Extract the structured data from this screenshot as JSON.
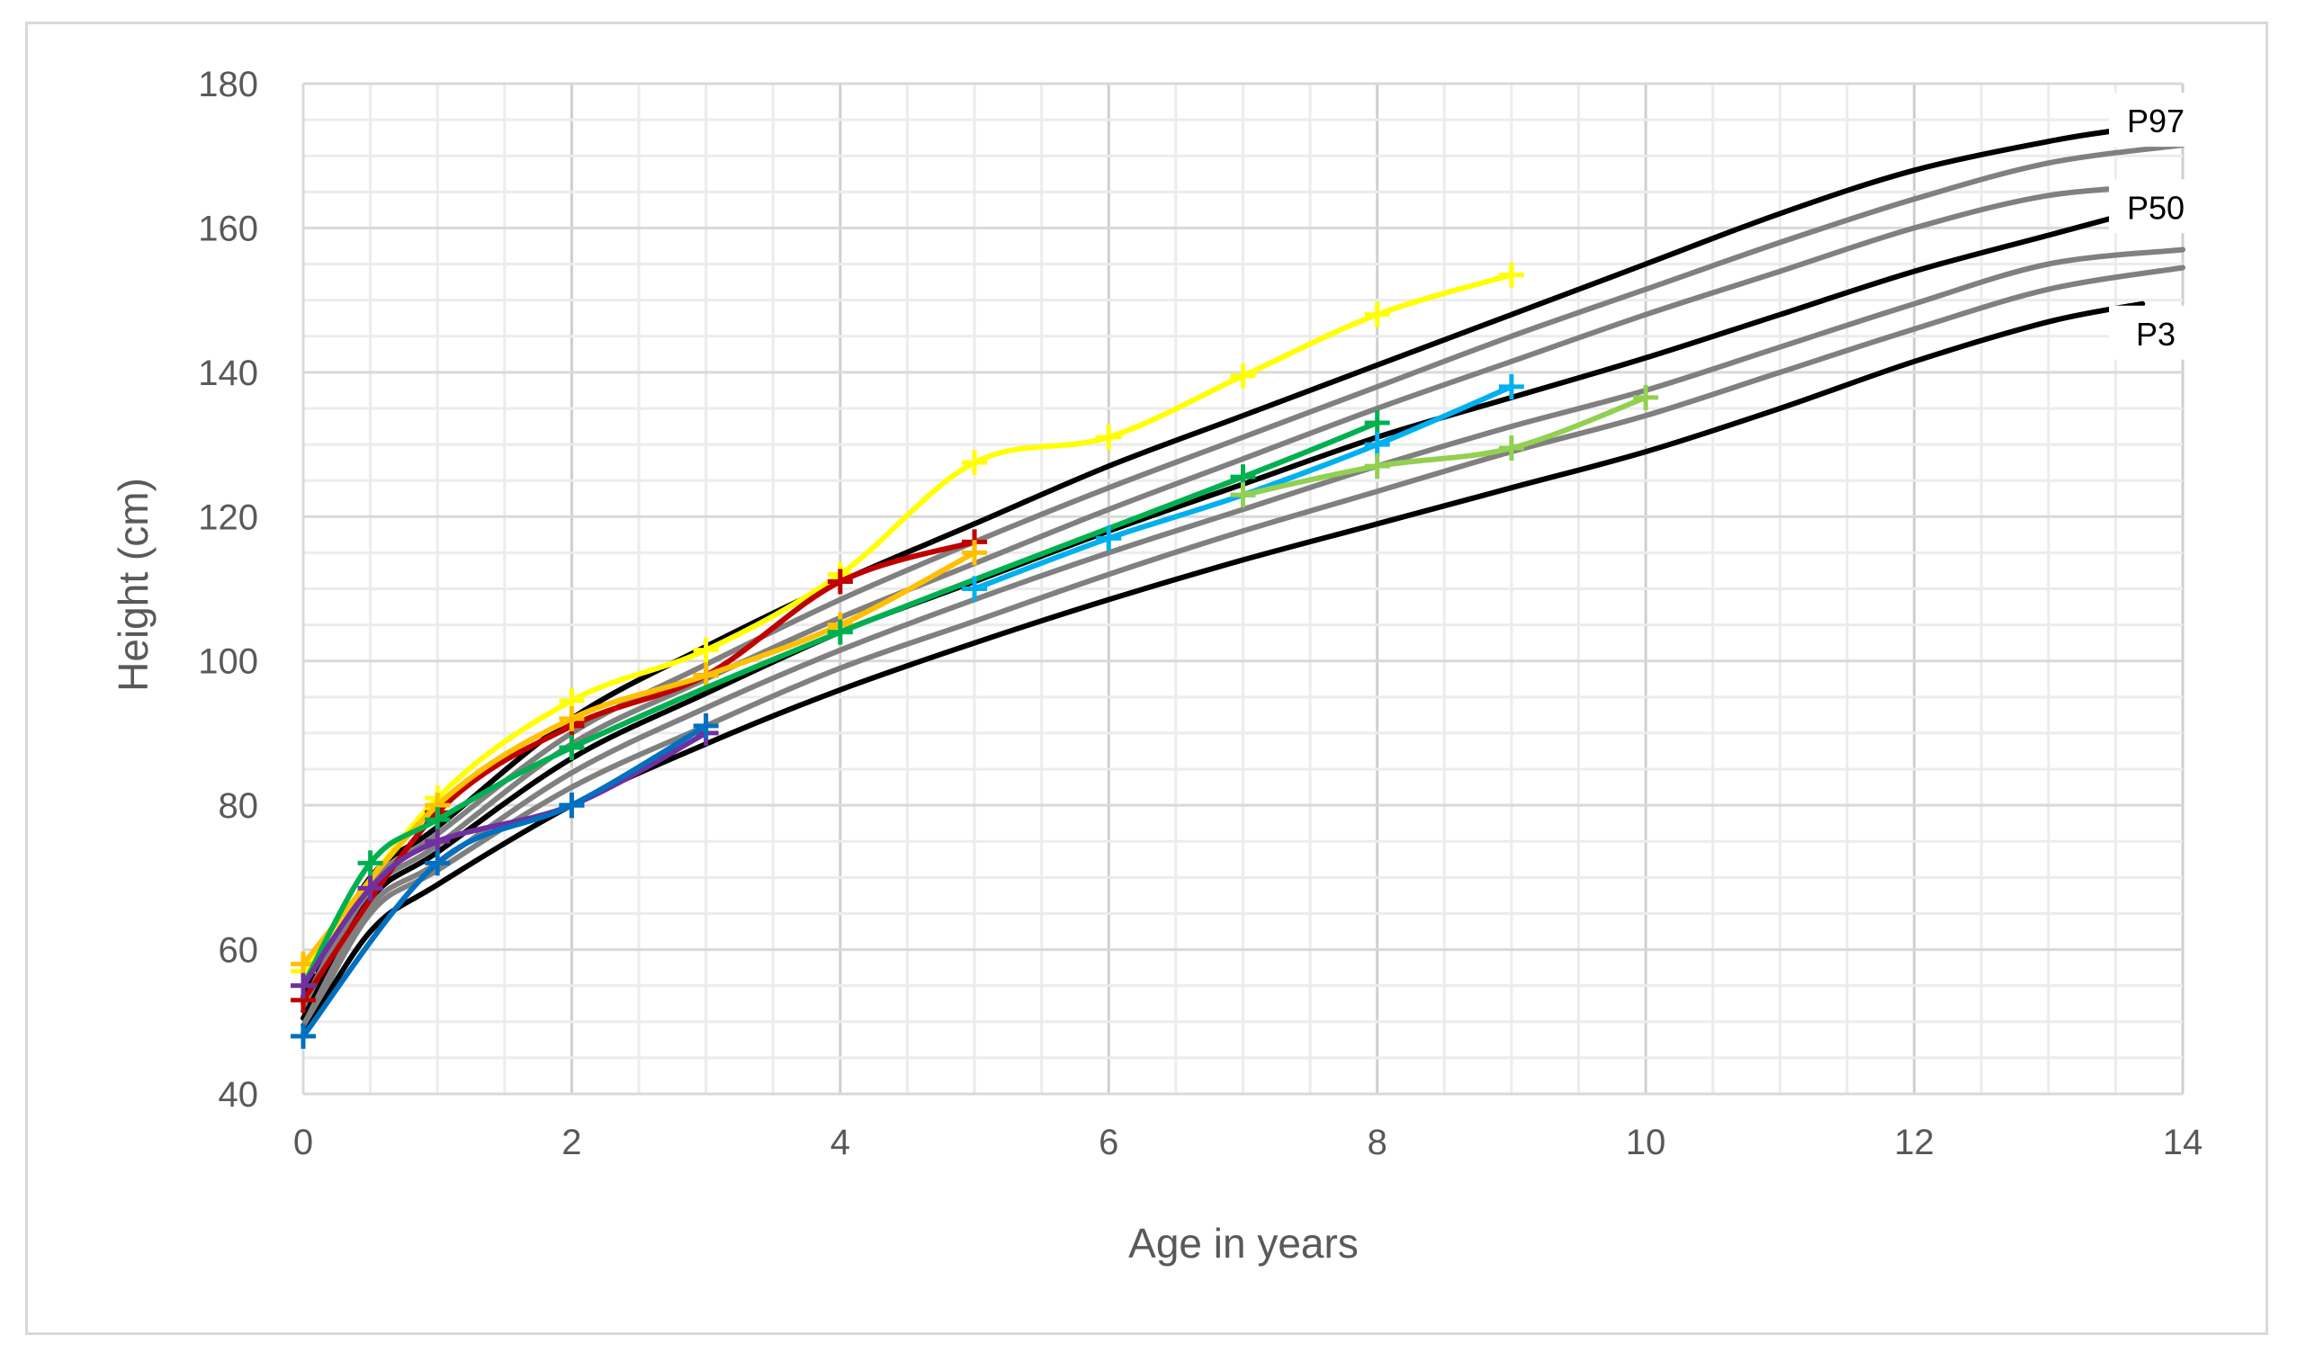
{
  "chart_data": {
    "type": "line",
    "xlabel": "Age in years",
    "ylabel": "Height (cm)",
    "xlim": [
      0,
      14
    ],
    "ylim": [
      40,
      180
    ],
    "x_ticks": [
      0,
      2,
      4,
      6,
      8,
      10,
      12,
      14
    ],
    "y_ticks": [
      40,
      60,
      80,
      100,
      120,
      140,
      160,
      180
    ],
    "grid": "on",
    "percentile_labels": [
      {
        "text": "P97",
        "y": 174
      },
      {
        "text": "P50",
        "y": 162
      },
      {
        "text": "P3",
        "y": 144.5
      }
    ],
    "reference_curves": [
      {
        "id": "p97",
        "color": "#000000",
        "x": [
          0,
          0.5,
          1,
          2,
          3,
          4,
          5,
          6,
          7,
          8,
          9,
          10,
          11,
          12,
          13,
          13.5
        ],
        "y": [
          53.5,
          70,
          77,
          92,
          102,
          111,
          119,
          127,
          134,
          141,
          148,
          155,
          162,
          168,
          172,
          173.5
        ]
      },
      {
        "id": "p90",
        "color": "#808080",
        "x": [
          0,
          0.5,
          1,
          2,
          3,
          4,
          5,
          6,
          7,
          8,
          9,
          10,
          11,
          12,
          13,
          14
        ],
        "y": [
          52.5,
          69,
          76,
          90,
          99.5,
          108.5,
          116.5,
          124,
          131,
          138,
          145,
          151.5,
          158,
          164,
          169,
          171.5
        ]
      },
      {
        "id": "p75",
        "color": "#808080",
        "x": [
          0,
          0.5,
          1,
          2,
          3,
          4,
          5,
          6,
          7,
          8,
          9,
          10,
          11,
          12,
          13,
          14
        ],
        "y": [
          51.5,
          68,
          74.5,
          88.5,
          97.5,
          106,
          113.5,
          121,
          128,
          135,
          141.5,
          148,
          154,
          160,
          164.5,
          166
        ]
      },
      {
        "id": "p50",
        "color": "#000000",
        "x": [
          0,
          0.5,
          1,
          2,
          3,
          4,
          5,
          6,
          7,
          8,
          9,
          10,
          11,
          12,
          13,
          13.5
        ],
        "y": [
          50.5,
          67,
          73.5,
          86.5,
          95.5,
          104,
          111,
          118,
          124.5,
          131,
          136.5,
          142,
          148,
          154,
          159,
          161.5
        ]
      },
      {
        "id": "p25",
        "color": "#808080",
        "x": [
          0,
          0.5,
          1,
          2,
          3,
          4,
          5,
          6,
          7,
          8,
          9,
          10,
          11,
          12,
          13,
          14
        ],
        "y": [
          49.5,
          66,
          72,
          84.5,
          93.5,
          101.5,
          108.5,
          115,
          121,
          127,
          132.5,
          137.5,
          143.5,
          149.5,
          155,
          157
        ]
      },
      {
        "id": "p10",
        "color": "#808080",
        "x": [
          0,
          0.5,
          1,
          2,
          3,
          4,
          5,
          6,
          7,
          8,
          9,
          10,
          11,
          12,
          13,
          14
        ],
        "y": [
          48.5,
          65,
          71,
          82.5,
          91,
          99,
          105.5,
          112,
          118,
          123.5,
          129,
          134,
          140,
          146,
          151.5,
          154.5
        ]
      },
      {
        "id": "p3",
        "color": "#000000",
        "x": [
          0,
          0.5,
          1,
          2,
          3,
          4,
          5,
          6,
          7,
          8,
          9,
          10,
          11,
          12,
          13,
          13.7
        ],
        "y": [
          48,
          62.5,
          69,
          80,
          88.5,
          96,
          102.5,
          108.5,
          114,
          119,
          124,
          129,
          135,
          141.5,
          147,
          149.5
        ]
      }
    ],
    "series": [
      {
        "id": "yellow",
        "color": "#ffff00",
        "x": [
          0,
          1,
          2,
          3,
          4,
          5,
          6,
          7,
          8,
          9
        ],
        "y": [
          57,
          81,
          94.5,
          101.5,
          112,
          127.5,
          131,
          139.5,
          148,
          153.5
        ]
      },
      {
        "id": "red",
        "color": "#c00000",
        "x": [
          0,
          1,
          2,
          3,
          4,
          5
        ],
        "y": [
          53,
          79,
          91,
          98,
          111,
          116.5
        ]
      },
      {
        "id": "orange",
        "color": "#ffc000",
        "x": [
          0,
          1,
          2,
          3,
          4,
          5
        ],
        "y": [
          58,
          80,
          92,
          98,
          105,
          115
        ]
      },
      {
        "id": "green",
        "color": "#00b050",
        "x": [
          0,
          0.5,
          1,
          2,
          4,
          7,
          8
        ],
        "y": [
          55,
          72,
          78,
          88,
          104,
          125.5,
          133
        ]
      },
      {
        "id": "purple",
        "color": "#7030a0",
        "x": [
          0,
          0.5,
          1,
          2,
          3
        ],
        "y": [
          55,
          68.5,
          75,
          80,
          90
        ]
      },
      {
        "id": "blue",
        "color": "#0070c0",
        "x": [
          0,
          1,
          2,
          3
        ],
        "y": [
          48,
          72,
          80,
          91
        ]
      },
      {
        "id": "light-blue",
        "color": "#00b0f0",
        "x": [
          5,
          6,
          7,
          8,
          9
        ],
        "y": [
          110,
          117,
          123,
          130,
          138
        ]
      },
      {
        "id": "light-green",
        "color": "#92d050",
        "x": [
          7,
          8,
          9,
          10
        ],
        "y": [
          123,
          127,
          129.5,
          136.5
        ]
      }
    ]
  }
}
